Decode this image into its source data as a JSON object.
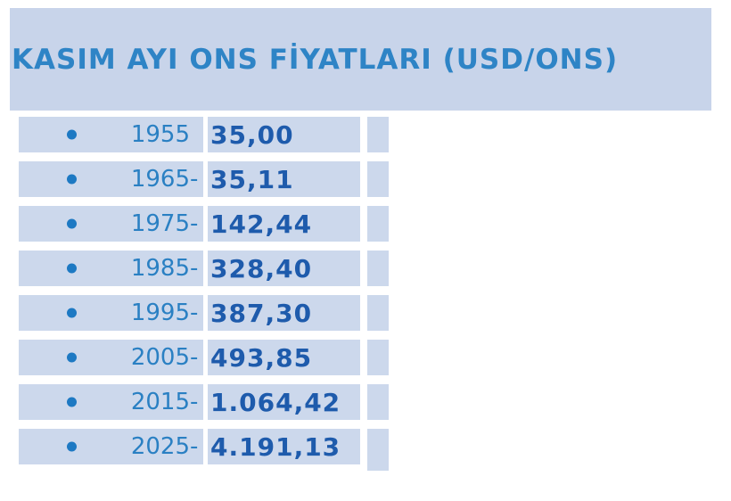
{
  "header": {
    "title": "KASIM AYI ONS FİYATLARI (USD/ONS)"
  },
  "table": {
    "rows": [
      {
        "year": "1955",
        "suffix": "",
        "price": "35,00"
      },
      {
        "year": "1965",
        "suffix": "-",
        "price": "35,11"
      },
      {
        "year": "1975",
        "suffix": "-",
        "price": "142,44"
      },
      {
        "year": "1985",
        "suffix": "-",
        "price": "328,40"
      },
      {
        "year": "1995",
        "suffix": "-",
        "price": "387,30"
      },
      {
        "year": "2005",
        "suffix": "-",
        "price": "493,85"
      },
      {
        "year": "2015",
        "suffix": "-",
        "price": "1.064,42"
      },
      {
        "year": "2025",
        "suffix": "-",
        "price": "4.191,13"
      }
    ]
  },
  "chart_data": {
    "type": "table",
    "title": "KASIM AYI ONS FİYATLARI (USD/ONS)",
    "categories": [
      "1955",
      "1965",
      "1975",
      "1985",
      "1995",
      "2005",
      "2015",
      "2025"
    ],
    "values": [
      35.0,
      35.11,
      142.44,
      328.4,
      387.3,
      493.85,
      1064.42,
      4191.13
    ],
    "value_labels": [
      "35,00",
      "35,11",
      "142,44",
      "328,40",
      "387,30",
      "493,85",
      "1.064,42",
      "4.191,13"
    ],
    "ylabel": "USD/ONS"
  },
  "colors": {
    "header-bg": "#c8d4ea",
    "cell-bg": "#ccd8ec",
    "title-color": "#2e84c6",
    "year-color": "#2a80c3",
    "price-color": "#1e5bac",
    "bullet-color": "#1d79c3"
  }
}
